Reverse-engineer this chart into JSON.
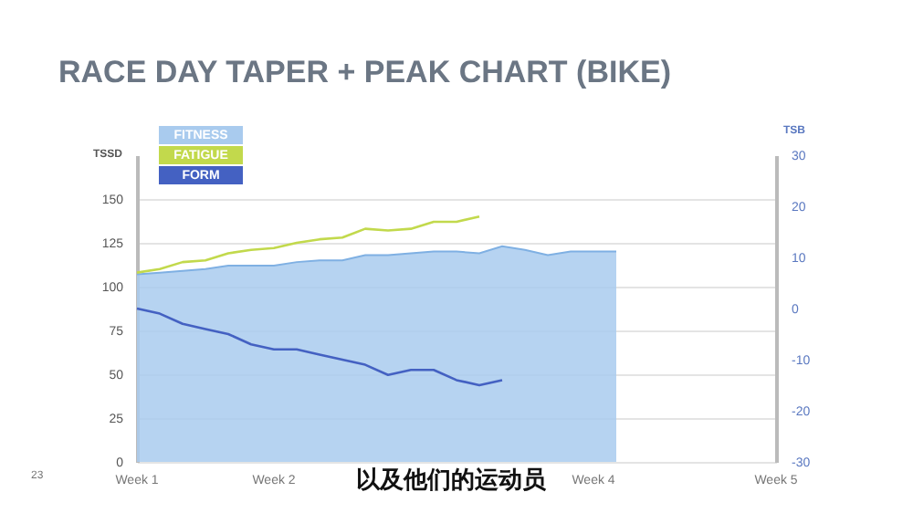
{
  "chart_data": {
    "type": "area",
    "title": "RACE DAY TAPER + PEAK CHART (BIKE)",
    "ylabel": "TSSD",
    "y2label": "TSB",
    "annotations": [
      "以及他们的运动员",
      "23"
    ],
    "categories": [
      "Week 1",
      null,
      null,
      null,
      null,
      null,
      "Week 2",
      null,
      null,
      null,
      null,
      null,
      null,
      null,
      null,
      null,
      null,
      null,
      null,
      null,
      "Week 4",
      null,
      null,
      null,
      null,
      null,
      null,
      null,
      "Week 5"
    ],
    "ylim": [
      0,
      175
    ],
    "yticks": [
      0,
      25,
      50,
      75,
      100,
      125,
      150
    ],
    "y2lim": [
      -30,
      30
    ],
    "y2ticks": [
      -30,
      -20,
      -10,
      0,
      10,
      20,
      30
    ],
    "grid": "y",
    "legend": "top left",
    "series": [
      {
        "name": "FITNESS",
        "type": "area",
        "color": "#a9cbee",
        "values": [
          107,
          108,
          109,
          110,
          112,
          112,
          112,
          114,
          115,
          115,
          118,
          118,
          119,
          120,
          120,
          119,
          123,
          121,
          118,
          120,
          120,
          120,
          null,
          null,
          null,
          null,
          null,
          null,
          null
        ]
      },
      {
        "name": "FATIGUE",
        "type": "line",
        "color": "#c2d94c",
        "values": [
          108,
          110,
          114,
          115,
          119,
          121,
          122,
          125,
          127,
          128,
          133,
          132,
          133,
          137,
          137,
          140,
          null,
          null,
          null,
          null,
          null,
          null,
          null,
          null,
          null,
          null,
          null,
          null,
          null
        ]
      },
      {
        "name": "FORM",
        "type": "line",
        "axis": "y2",
        "color": "#4461c2",
        "values": [
          0,
          -1,
          -3,
          -4,
          -5,
          -7,
          -8,
          -8,
          -9,
          -10,
          -11,
          -13,
          -12,
          -12,
          -14,
          -15,
          -14,
          null,
          null,
          null,
          null,
          null,
          null,
          null,
          null,
          null,
          null,
          null,
          null
        ]
      }
    ]
  }
}
